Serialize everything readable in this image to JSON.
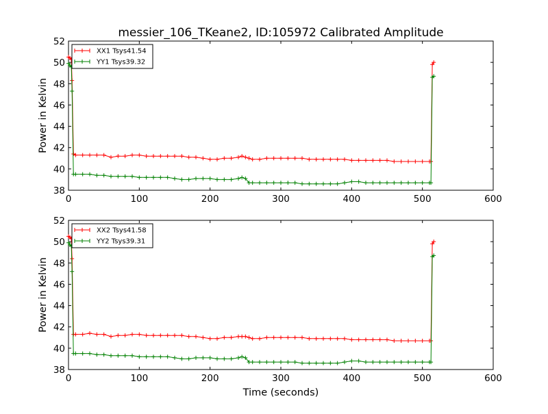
{
  "figure": {
    "title": "messier_106_TKeane2, ID:105972 Calibrated Amplitude"
  },
  "chart_data": [
    {
      "type": "line",
      "title": "messier_106_TKeane2, ID:105972 Calibrated Amplitude",
      "xlabel": "",
      "ylabel": "Power in Kelvin",
      "xlim": [
        0,
        600
      ],
      "ylim": [
        38,
        52
      ],
      "xticks": [
        "0",
        "100",
        "200",
        "300",
        "400",
        "500",
        "600"
      ],
      "yticks": [
        "38",
        "40",
        "42",
        "44",
        "46",
        "48",
        "50",
        "52"
      ],
      "legend_position": "top-left",
      "grid": false,
      "series": [
        {
          "name": "XX1 Tsys41.54",
          "color": "#ff0000",
          "x": [
            0,
            2,
            4,
            5,
            7,
            10,
            20,
            30,
            40,
            50,
            60,
            70,
            80,
            90,
            100,
            110,
            120,
            130,
            140,
            150,
            160,
            170,
            180,
            190,
            200,
            210,
            220,
            230,
            240,
            245,
            250,
            255,
            260,
            270,
            280,
            290,
            300,
            310,
            320,
            330,
            340,
            350,
            360,
            370,
            380,
            390,
            400,
            410,
            420,
            430,
            440,
            450,
            460,
            470,
            480,
            490,
            500,
            510,
            512,
            514,
            516
          ],
          "y": [
            50.5,
            50.4,
            50.3,
            48.3,
            41.4,
            41.3,
            41.3,
            41.3,
            41.3,
            41.3,
            41.1,
            41.2,
            41.2,
            41.3,
            41.3,
            41.2,
            41.2,
            41.2,
            41.2,
            41.2,
            41.2,
            41.1,
            41.1,
            41.0,
            40.9,
            40.9,
            41.0,
            41.0,
            41.1,
            41.2,
            41.1,
            41.0,
            40.9,
            40.9,
            41.0,
            41.0,
            41.0,
            41.0,
            41.0,
            41.0,
            40.9,
            40.9,
            40.9,
            40.9,
            40.9,
            40.9,
            40.8,
            40.8,
            40.8,
            40.8,
            40.8,
            40.8,
            40.7,
            40.7,
            40.7,
            40.7,
            40.7,
            40.7,
            40.7,
            49.8,
            50.0
          ]
        },
        {
          "name": "YY1 Tsys39.32",
          "color": "#008000",
          "x": [
            0,
            2,
            4,
            5,
            7,
            10,
            20,
            30,
            40,
            50,
            60,
            70,
            80,
            90,
            100,
            110,
            120,
            130,
            140,
            150,
            160,
            170,
            180,
            190,
            200,
            210,
            220,
            230,
            240,
            245,
            250,
            255,
            260,
            270,
            280,
            290,
            300,
            310,
            320,
            330,
            340,
            350,
            360,
            370,
            380,
            390,
            400,
            410,
            420,
            430,
            440,
            450,
            460,
            470,
            480,
            490,
            500,
            510,
            512,
            514,
            516
          ],
          "y": [
            49.9,
            49.7,
            49.6,
            47.3,
            39.5,
            39.5,
            39.5,
            39.5,
            39.4,
            39.4,
            39.3,
            39.3,
            39.3,
            39.3,
            39.2,
            39.2,
            39.2,
            39.2,
            39.2,
            39.1,
            39.0,
            39.0,
            39.1,
            39.1,
            39.1,
            39.0,
            39.0,
            39.0,
            39.1,
            39.2,
            39.1,
            38.7,
            38.7,
            38.7,
            38.7,
            38.7,
            38.7,
            38.7,
            38.7,
            38.6,
            38.6,
            38.6,
            38.6,
            38.6,
            38.6,
            38.7,
            38.8,
            38.8,
            38.7,
            38.7,
            38.7,
            38.7,
            38.7,
            38.7,
            38.7,
            38.7,
            38.7,
            38.7,
            38.7,
            48.6,
            48.7
          ]
        }
      ]
    },
    {
      "type": "line",
      "title": "",
      "xlabel": "Time (seconds)",
      "ylabel": "Power in Kelvin",
      "xlim": [
        0,
        600
      ],
      "ylim": [
        38,
        52
      ],
      "xticks": [
        "0",
        "100",
        "200",
        "300",
        "400",
        "500",
        "600"
      ],
      "yticks": [
        "38",
        "40",
        "42",
        "44",
        "46",
        "48",
        "50",
        "52"
      ],
      "legend_position": "top-left",
      "grid": false,
      "series": [
        {
          "name": "XX2 Tsys41.58",
          "color": "#ff0000",
          "x": [
            0,
            2,
            4,
            5,
            7,
            10,
            20,
            30,
            40,
            50,
            60,
            70,
            80,
            90,
            100,
            110,
            120,
            130,
            140,
            150,
            160,
            170,
            180,
            190,
            200,
            210,
            220,
            230,
            240,
            245,
            250,
            255,
            260,
            270,
            280,
            290,
            300,
            310,
            320,
            330,
            340,
            350,
            360,
            370,
            380,
            390,
            400,
            410,
            420,
            430,
            440,
            450,
            460,
            470,
            480,
            490,
            500,
            510,
            512,
            514,
            516
          ],
          "y": [
            50.5,
            50.4,
            50.3,
            48.4,
            41.3,
            41.3,
            41.3,
            41.4,
            41.3,
            41.3,
            41.1,
            41.2,
            41.2,
            41.3,
            41.3,
            41.2,
            41.2,
            41.2,
            41.2,
            41.2,
            41.2,
            41.1,
            41.1,
            41.0,
            40.9,
            40.9,
            41.0,
            41.0,
            41.1,
            41.1,
            41.1,
            41.0,
            40.9,
            40.9,
            41.0,
            41.0,
            41.0,
            41.0,
            41.0,
            41.0,
            40.9,
            40.9,
            40.9,
            40.9,
            40.9,
            40.9,
            40.8,
            40.8,
            40.8,
            40.8,
            40.8,
            40.8,
            40.7,
            40.7,
            40.7,
            40.7,
            40.7,
            40.7,
            40.7,
            49.8,
            50.0
          ]
        },
        {
          "name": "YY2 Tsys39.31",
          "color": "#008000",
          "x": [
            0,
            2,
            4,
            5,
            7,
            10,
            20,
            30,
            40,
            50,
            60,
            70,
            80,
            90,
            100,
            110,
            120,
            130,
            140,
            150,
            160,
            170,
            180,
            190,
            200,
            210,
            220,
            230,
            240,
            245,
            250,
            255,
            260,
            270,
            280,
            290,
            300,
            310,
            320,
            330,
            340,
            350,
            360,
            370,
            380,
            390,
            400,
            410,
            420,
            430,
            440,
            450,
            460,
            470,
            480,
            490,
            500,
            510,
            512,
            514,
            516
          ],
          "y": [
            49.9,
            49.7,
            49.6,
            47.2,
            39.5,
            39.5,
            39.5,
            39.5,
            39.4,
            39.4,
            39.3,
            39.3,
            39.3,
            39.3,
            39.2,
            39.2,
            39.2,
            39.2,
            39.2,
            39.1,
            39.0,
            39.0,
            39.1,
            39.1,
            39.1,
            39.0,
            39.0,
            39.0,
            39.1,
            39.2,
            39.1,
            38.7,
            38.7,
            38.7,
            38.7,
            38.7,
            38.7,
            38.7,
            38.7,
            38.6,
            38.6,
            38.6,
            38.6,
            38.6,
            38.6,
            38.7,
            38.8,
            38.8,
            38.7,
            38.7,
            38.7,
            38.7,
            38.7,
            38.7,
            38.7,
            38.7,
            38.7,
            38.7,
            38.7,
            48.6,
            48.7
          ]
        }
      ]
    }
  ]
}
